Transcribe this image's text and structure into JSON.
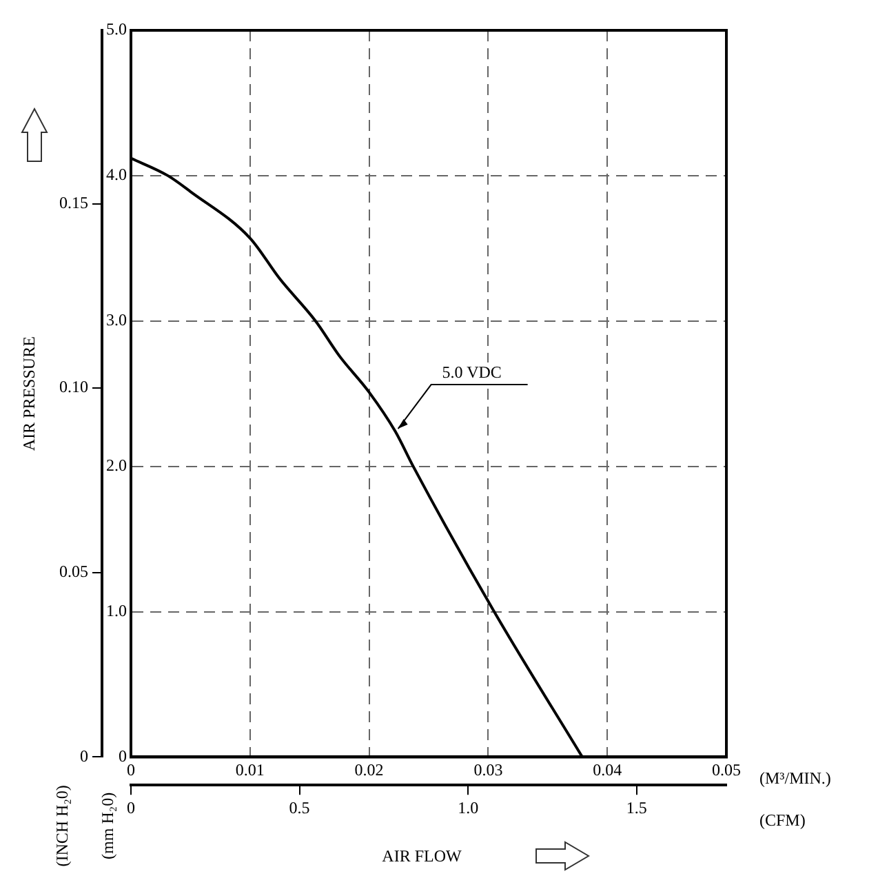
{
  "chart_data": {
    "type": "line",
    "xlabel": "(M³/MIN.)",
    "x2label": "(CFM)",
    "ylabel": "(mm H₂0)",
    "y2label": "(INCH H₂0)",
    "annotations": [
      "AIR PRESSURE",
      "AIR FLOW"
    ],
    "x": [
      0,
      0.0031,
      0.005,
      0.01,
      0.0125,
      0.0155,
      0.0175,
      0.02,
      0.0222,
      0.0237,
      0.0305,
      0.0379
    ],
    "series": [
      {
        "name": "5.0 VDC",
        "color": "#000000",
        "values": [
          4.12,
          4.0,
          3.89,
          3.57,
          3.29,
          3.0,
          2.76,
          2.51,
          2.24,
          2.0,
          1.0,
          0
        ]
      }
    ],
    "xlim": [
      0,
      0.05
    ],
    "xticks": [
      0,
      0.01,
      0.02,
      0.03,
      0.04,
      0.05
    ],
    "x2lim": [
      0,
      1.766
    ],
    "x2ticks": [
      0,
      0.5,
      {
        "value": 1,
        "label": "1.0"
      },
      1.5
    ],
    "ylim": [
      0,
      5
    ],
    "yticks": [
      0,
      {
        "value": 1,
        "label": "1.0"
      },
      {
        "value": 2,
        "label": "2.0"
      },
      {
        "value": 3,
        "label": "3.0"
      },
      {
        "value": 4,
        "label": "4.0"
      },
      {
        "value": 5,
        "label": "5.0"
      }
    ],
    "y2lim": [
      0,
      0.197
    ],
    "y2ticks": [
      0,
      0.05,
      {
        "value": 0.1,
        "label": "0.10"
      },
      0.15
    ],
    "grid": true,
    "legend": false,
    "marker": "none",
    "line_style": "solid"
  }
}
